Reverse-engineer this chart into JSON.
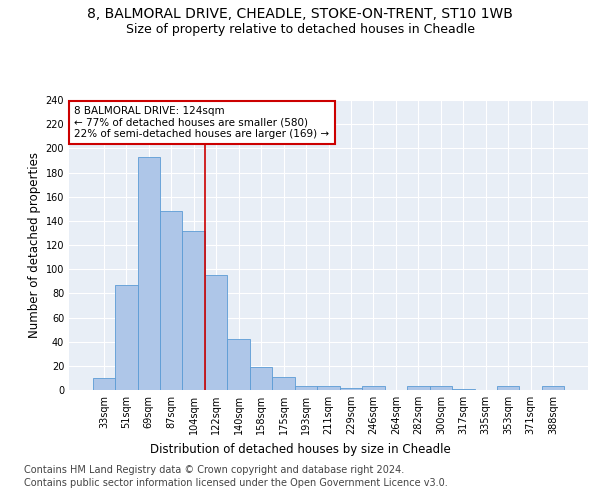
{
  "title_line1": "8, BALMORAL DRIVE, CHEADLE, STOKE-ON-TRENT, ST10 1WB",
  "title_line2": "Size of property relative to detached houses in Cheadle",
  "xlabel": "Distribution of detached houses by size in Cheadle",
  "ylabel": "Number of detached properties",
  "categories": [
    "33sqm",
    "51sqm",
    "69sqm",
    "87sqm",
    "104sqm",
    "122sqm",
    "140sqm",
    "158sqm",
    "175sqm",
    "193sqm",
    "211sqm",
    "229sqm",
    "246sqm",
    "264sqm",
    "282sqm",
    "300sqm",
    "317sqm",
    "335sqm",
    "353sqm",
    "371sqm",
    "388sqm"
  ],
  "values": [
    10,
    87,
    193,
    148,
    132,
    95,
    42,
    19,
    11,
    3,
    3,
    2,
    3,
    0,
    3,
    3,
    1,
    0,
    3,
    0,
    3
  ],
  "bar_color": "#aec6e8",
  "bar_edge_color": "#5b9bd5",
  "annotation_line1": "8 BALMORAL DRIVE: 124sqm",
  "annotation_line2": "← 77% of detached houses are smaller (580)",
  "annotation_line3": "22% of semi-detached houses are larger (169) →",
  "annotation_box_color": "#ffffff",
  "annotation_box_edge": "#cc0000",
  "vline_color": "#cc0000",
  "vline_x": 4.5,
  "ylim": [
    0,
    240
  ],
  "yticks": [
    0,
    20,
    40,
    60,
    80,
    100,
    120,
    140,
    160,
    180,
    200,
    220,
    240
  ],
  "footer_line1": "Contains HM Land Registry data © Crown copyright and database right 2024.",
  "footer_line2": "Contains public sector information licensed under the Open Government Licence v3.0.",
  "bg_color": "#e8eef6",
  "fig_bg_color": "#ffffff",
  "title_fontsize": 10,
  "subtitle_fontsize": 9,
  "axis_label_fontsize": 8.5,
  "tick_fontsize": 7,
  "annotation_fontsize": 7.5,
  "footer_fontsize": 7
}
